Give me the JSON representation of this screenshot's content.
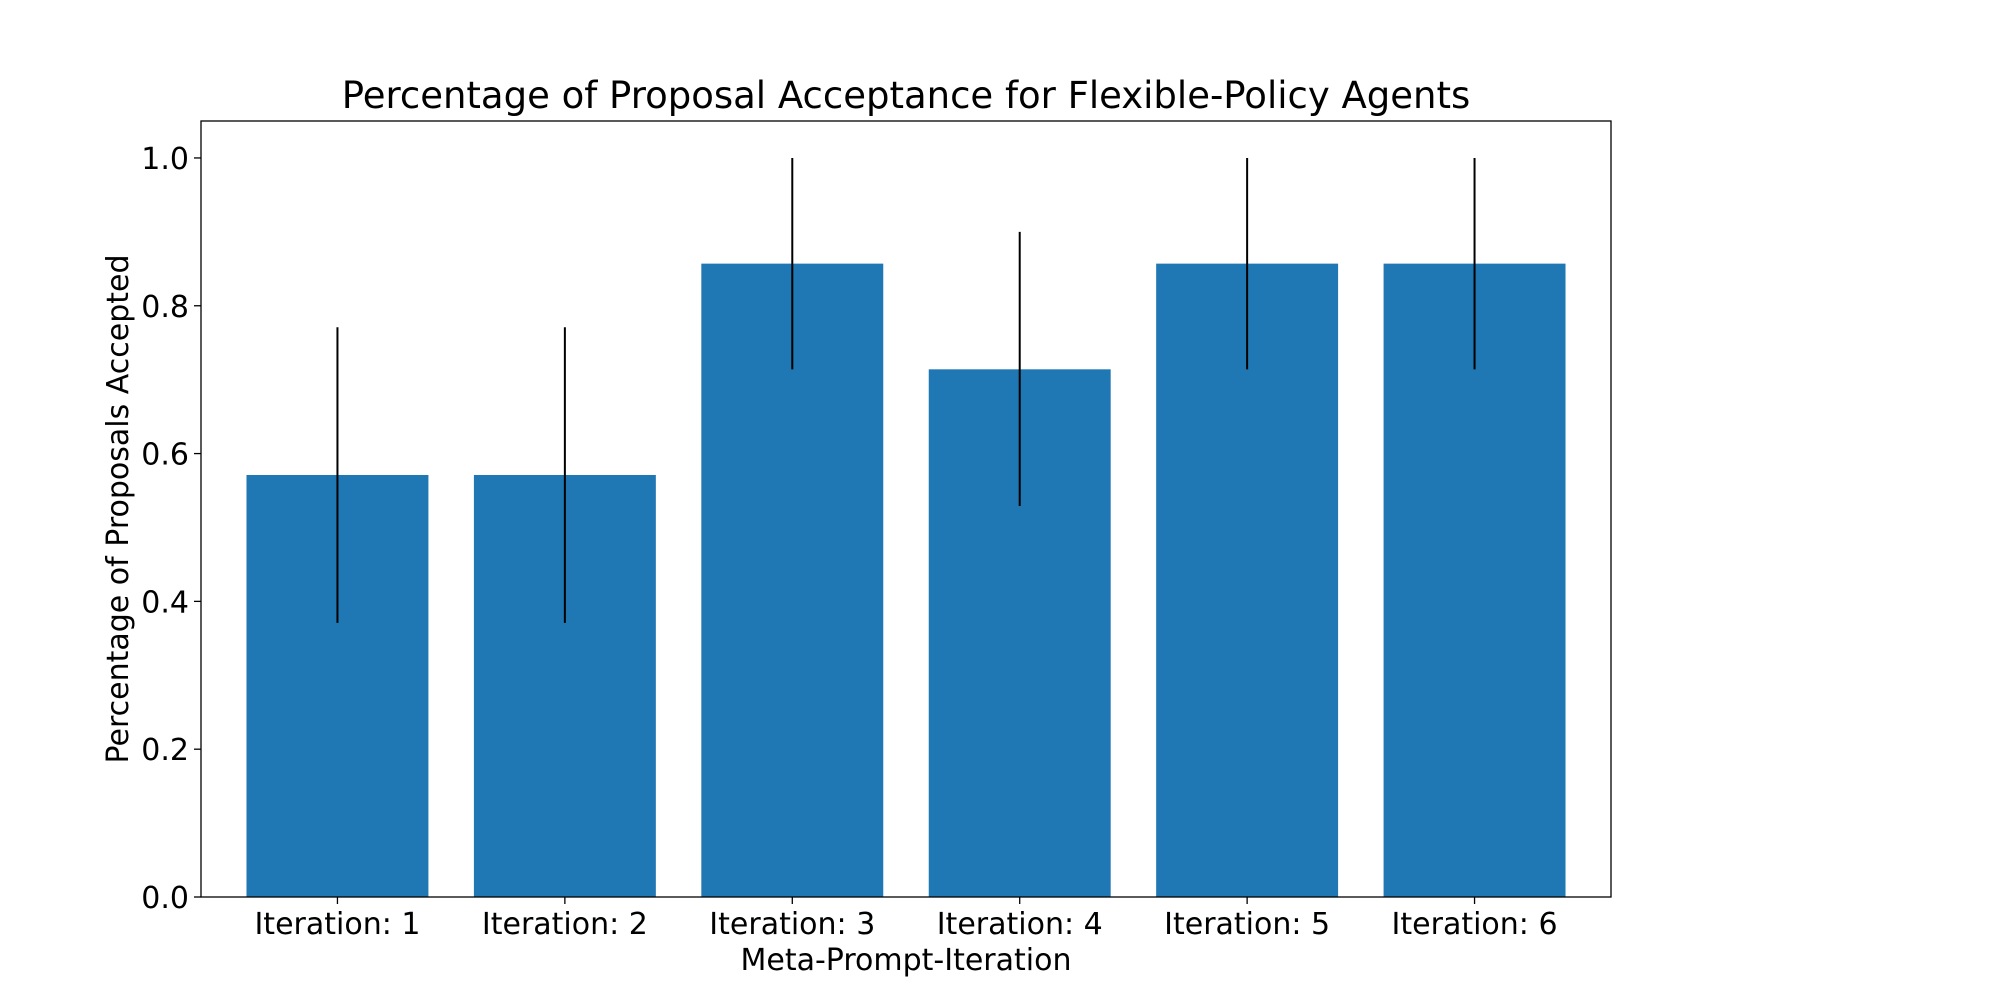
{
  "chart_data": {
    "type": "bar",
    "title": "Percentage of Proposal Acceptance for Flexible-Policy Agents",
    "xlabel": "Meta-Prompt-Iteration",
    "ylabel": "Percentage of Proposals Accepted",
    "categories": [
      "Iteration: 1",
      "Iteration: 2",
      "Iteration: 3",
      "Iteration: 4",
      "Iteration: 5",
      "Iteration: 6"
    ],
    "values": [
      0.571,
      0.571,
      0.857,
      0.714,
      0.857,
      0.857
    ],
    "error_bars": [
      {
        "low": 0.371,
        "high": 0.771
      },
      {
        "low": 0.371,
        "high": 0.771
      },
      {
        "low": 0.714,
        "high": 1.0
      },
      {
        "low": 0.529,
        "high": 0.9
      },
      {
        "low": 0.714,
        "high": 1.0
      },
      {
        "low": 0.714,
        "high": 1.0
      }
    ],
    "ylim": [
      0,
      1.05
    ],
    "yticks": [
      0.0,
      0.2,
      0.4,
      0.6,
      0.8,
      1.0
    ],
    "ytick_labels": [
      "0.0",
      "0.2",
      "0.4",
      "0.6",
      "0.8",
      "1.0"
    ],
    "bar_color": "#1f77b4",
    "error_color": "#000000",
    "grid": false,
    "legend": "none"
  }
}
